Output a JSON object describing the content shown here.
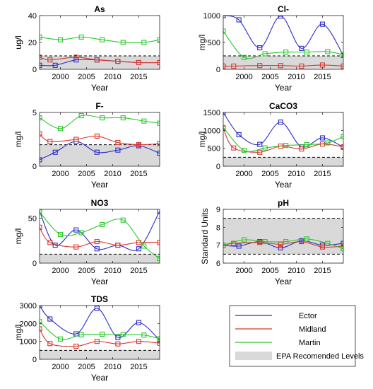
{
  "figure": {
    "legend": {
      "entries": [
        "Ector",
        "Midland",
        "Martin",
        "EPA Recomended Levels"
      ],
      "colors": [
        "#2b2bc9",
        "#d9372b",
        "#2bc92b",
        "#d9d9d9"
      ]
    }
  },
  "chart_data": [
    {
      "type": "line",
      "title": "As",
      "xlabel": "Year",
      "ylabel": "ug/l",
      "xlim": [
        1996,
        2019
      ],
      "ylim": [
        0,
        40
      ],
      "xticks": [
        2000,
        2005,
        2010,
        2015
      ],
      "yticks": [
        0,
        20,
        40
      ],
      "epa_range": [
        0,
        10
      ],
      "series": [
        {
          "name": "Ector",
          "color": "#2b2bc9",
          "x": [
            1996,
            1999,
            2003,
            2007,
            2011,
            2015,
            2019
          ],
          "y": [
            3,
            3,
            7,
            7,
            6,
            5,
            5
          ]
        },
        {
          "name": "Midland",
          "color": "#d9372b",
          "x": [
            1996,
            1998,
            2003,
            2007,
            2011,
            2015,
            2019
          ],
          "y": [
            9,
            7,
            9,
            7,
            6,
            5,
            5
          ]
        },
        {
          "name": "Martin",
          "color": "#2bc92b",
          "x": [
            1996,
            2000,
            2004,
            2008,
            2012,
            2016,
            2019
          ],
          "y": [
            24,
            22,
            24,
            22,
            20,
            20,
            22
          ]
        }
      ]
    },
    {
      "type": "line",
      "title": "Cl-",
      "xlabel": "Year",
      "ylabel": "mg/l",
      "xlim": [
        1996,
        2019
      ],
      "ylim": [
        0,
        1000
      ],
      "xticks": [
        2000,
        2005,
        2010,
        2015
      ],
      "yticks": [
        0,
        500,
        1000
      ],
      "epa_range": [
        0,
        250
      ],
      "series": [
        {
          "name": "Ector",
          "color": "#2b2bc9",
          "x": [
            1996,
            1999,
            2003,
            2007,
            2011,
            2015,
            2019
          ],
          "y": [
            1000,
            920,
            400,
            990,
            390,
            840,
            260
          ]
        },
        {
          "name": "Midland",
          "color": "#d9372b",
          "x": [
            1996,
            1998,
            2003,
            2007,
            2011,
            2015,
            2019
          ],
          "y": [
            60,
            60,
            70,
            70,
            60,
            80,
            60
          ]
        },
        {
          "name": "Martin",
          "color": "#2bc92b",
          "x": [
            1996,
            2000,
            2004,
            2008,
            2012,
            2016,
            2019
          ],
          "y": [
            710,
            220,
            290,
            320,
            320,
            330,
            270
          ]
        }
      ]
    },
    {
      "type": "line",
      "title": "F-",
      "xlabel": "Year",
      "ylabel": "mg/l",
      "xlim": [
        1996,
        2019
      ],
      "ylim": [
        0,
        5
      ],
      "xticks": [
        2000,
        2005,
        2010,
        2015
      ],
      "yticks": [
        0,
        5
      ],
      "epa_range": [
        0,
        2
      ],
      "series": [
        {
          "name": "Ector",
          "color": "#2b2bc9",
          "x": [
            1996,
            1999,
            2003,
            2007,
            2011,
            2015,
            2019
          ],
          "y": [
            0.6,
            1.3,
            2.3,
            1.3,
            1.5,
            1.9,
            1.2
          ]
        },
        {
          "name": "Midland",
          "color": "#d9372b",
          "x": [
            1996,
            1998,
            2003,
            2007,
            2011,
            2015,
            2019
          ],
          "y": [
            3.0,
            2.3,
            2.5,
            2.8,
            2.2,
            2.0,
            2.1
          ]
        },
        {
          "name": "Martin",
          "color": "#2bc92b",
          "x": [
            1996,
            2000,
            2004,
            2008,
            2012,
            2016,
            2019
          ],
          "y": [
            4.5,
            3.5,
            4.7,
            4.5,
            4.5,
            4.2,
            4.0
          ]
        }
      ]
    },
    {
      "type": "line",
      "title": "CaCO3",
      "xlabel": "Year",
      "ylabel": "mg/l",
      "xlim": [
        1996,
        2019
      ],
      "ylim": [
        0,
        1500
      ],
      "xticks": [
        2000,
        2005,
        2010,
        2015
      ],
      "yticks": [
        0,
        500,
        1000,
        1500
      ],
      "epa_range": [
        0,
        250
      ],
      "series": [
        {
          "name": "Ector",
          "color": "#2b2bc9",
          "x": [
            1996,
            1999,
            2003,
            2007,
            2011,
            2015,
            2019
          ],
          "y": [
            1500,
            880,
            610,
            1230,
            540,
            790,
            530
          ]
        },
        {
          "name": "Midland",
          "color": "#d9372b",
          "x": [
            1996,
            1998,
            2003,
            2007,
            2011,
            2015,
            2019
          ],
          "y": [
            1060,
            510,
            390,
            560,
            480,
            620,
            540
          ]
        },
        {
          "name": "Martin",
          "color": "#2bc92b",
          "x": [
            1996,
            2000,
            2004,
            2008,
            2012,
            2016,
            2019
          ],
          "y": [
            1080,
            440,
            510,
            580,
            600,
            650,
            830
          ]
        }
      ]
    },
    {
      "type": "line",
      "title": "NO3",
      "xlabel": "Year",
      "ylabel": "mg/l",
      "xlim": [
        1996,
        2019
      ],
      "ylim": [
        0,
        60
      ],
      "xticks": [
        2000,
        2005,
        2010,
        2015
      ],
      "yticks": [
        0,
        50
      ],
      "epa_range": [
        0,
        10
      ],
      "series": [
        {
          "name": "Ector",
          "color": "#2b2bc9",
          "x": [
            1996,
            1999,
            2003,
            2007,
            2011,
            2015,
            2019
          ],
          "y": [
            58,
            20,
            37,
            16,
            20,
            16,
            58
          ]
        },
        {
          "name": "Midland",
          "color": "#d9372b",
          "x": [
            1996,
            1998,
            2003,
            2007,
            2011,
            2015,
            2019
          ],
          "y": [
            40,
            23,
            18,
            24,
            20,
            23,
            23
          ]
        },
        {
          "name": "Martin",
          "color": "#2bc92b",
          "x": [
            1996,
            2000,
            2004,
            2008,
            2012,
            2016,
            2019
          ],
          "y": [
            57,
            32,
            34,
            43,
            48,
            19,
            5
          ]
        }
      ]
    },
    {
      "type": "line",
      "title": "pH",
      "xlabel": "Year",
      "ylabel": "Standard Units",
      "xlim": [
        1996,
        2019
      ],
      "ylim": [
        6,
        9
      ],
      "xticks": [
        2000,
        2005,
        2010,
        2015
      ],
      "yticks": [
        6,
        7,
        8,
        9
      ],
      "epa_range": [
        6.5,
        8.5
      ],
      "series": [
        {
          "name": "Ector",
          "color": "#2b2bc9",
          "x": [
            1996,
            1999,
            2003,
            2007,
            2011,
            2015,
            2019
          ],
          "y": [
            7.0,
            6.95,
            7.2,
            6.85,
            7.25,
            7.0,
            7.1
          ]
        },
        {
          "name": "Midland",
          "color": "#d9372b",
          "x": [
            1996,
            1998,
            2003,
            2007,
            2011,
            2015,
            2019
          ],
          "y": [
            7.0,
            7.1,
            7.15,
            7.05,
            7.2,
            6.9,
            6.95
          ]
        },
        {
          "name": "Martin",
          "color": "#2bc92b",
          "x": [
            1996,
            2000,
            2004,
            2008,
            2012,
            2016,
            2019
          ],
          "y": [
            7.0,
            7.3,
            7.2,
            7.2,
            7.35,
            7.1,
            6.8
          ]
        }
      ]
    },
    {
      "type": "line",
      "title": "TDS",
      "xlabel": "Year",
      "ylabel": "mg/l",
      "xlim": [
        1996,
        2019
      ],
      "ylim": [
        0,
        3000
      ],
      "xticks": [
        2000,
        2005,
        2010,
        2015
      ],
      "yticks": [
        0,
        1000,
        2000,
        3000
      ],
      "epa_range": [
        0,
        500
      ],
      "series": [
        {
          "name": "Ector",
          "color": "#2b2bc9",
          "x": [
            1996,
            1998,
            2003,
            2007,
            2011,
            2015,
            2019
          ],
          "y": [
            3000,
            2250,
            1420,
            2850,
            1220,
            2050,
            1060
          ]
        },
        {
          "name": "Midland",
          "color": "#d9372b",
          "x": [
            1996,
            1998,
            2003,
            2007,
            2011,
            2015,
            2019
          ],
          "y": [
            1700,
            880,
            730,
            1000,
            860,
            1000,
            900
          ]
        },
        {
          "name": "Martin",
          "color": "#2bc92b",
          "x": [
            1996,
            2000,
            2004,
            2008,
            2012,
            2016,
            2019
          ],
          "y": [
            2100,
            1130,
            1370,
            1400,
            1390,
            1350,
            1150
          ]
        }
      ]
    }
  ]
}
